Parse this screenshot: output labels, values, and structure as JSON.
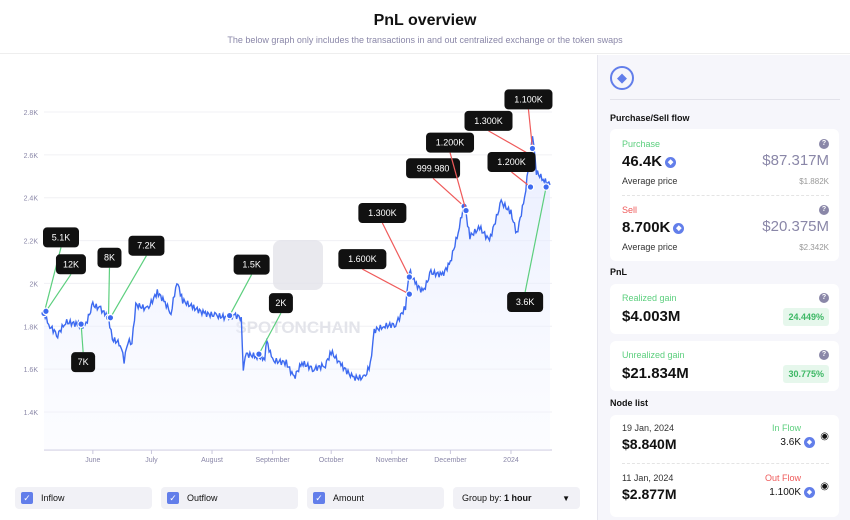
{
  "header": {
    "title": "PnL overview",
    "subtitle": "The below graph only includes the transactions in and out centralized exchange or the token swaps"
  },
  "colors": {
    "line": "#3d6af0",
    "inflow": "#5ccf7e",
    "outflow": "#ef5a5a",
    "accent": "#627eea"
  },
  "watermark": "SPOTONCHAIN",
  "chart_data": {
    "type": "line",
    "yticks": [
      "1.4K",
      "1.6K",
      "1.8K",
      "2K",
      "2.2K",
      "2.4K",
      "2.6K",
      "2.8K"
    ],
    "ylim": [
      1400,
      2800
    ],
    "xticks": [
      {
        "label": "June",
        "date": "2023-06-01"
      },
      {
        "label": "July",
        "date": "2023-07-01"
      },
      {
        "label": "August",
        "date": "2023-08-01"
      },
      {
        "label": "September",
        "date": "2023-09-01"
      },
      {
        "label": "October",
        "date": "2023-10-01"
      },
      {
        "label": "November",
        "date": "2023-11-01"
      },
      {
        "label": "December",
        "date": "2023-12-01"
      },
      {
        "label": "2024",
        "date": "2024-01-01"
      }
    ],
    "xlim": [
      "2023-05-07",
      "2024-01-22"
    ],
    "series": [
      [
        "2023-05-07",
        1860
      ],
      [
        "2023-05-10",
        1800
      ],
      [
        "2023-05-14",
        1760
      ],
      [
        "2023-05-18",
        1820
      ],
      [
        "2023-05-24",
        1810
      ],
      [
        "2023-05-28",
        1800
      ],
      [
        "2023-06-01",
        1900
      ],
      [
        "2023-06-05",
        1880
      ],
      [
        "2023-06-09",
        1840
      ],
      [
        "2023-06-11",
        1740
      ],
      [
        "2023-06-15",
        1720
      ],
      [
        "2023-06-17",
        1640
      ],
      [
        "2023-06-19",
        1730
      ],
      [
        "2023-06-21",
        1720
      ],
      [
        "2023-06-23",
        1900
      ],
      [
        "2023-06-29",
        1880
      ],
      [
        "2023-07-04",
        1960
      ],
      [
        "2023-07-08",
        1910
      ],
      [
        "2023-07-11",
        1860
      ],
      [
        "2023-07-14",
        2010
      ],
      [
        "2023-07-17",
        1920
      ],
      [
        "2023-07-22",
        1890
      ],
      [
        "2023-07-28",
        1860
      ],
      [
        "2023-08-03",
        1850
      ],
      [
        "2023-08-09",
        1840
      ],
      [
        "2023-08-13",
        1850
      ],
      [
        "2023-08-16",
        1840
      ],
      [
        "2023-08-17",
        1600
      ],
      [
        "2023-08-18",
        1670
      ],
      [
        "2023-08-24",
        1660
      ],
      [
        "2023-08-28",
        1650
      ],
      [
        "2023-08-29",
        1730
      ],
      [
        "2023-09-01",
        1640
      ],
      [
        "2023-09-08",
        1630
      ],
      [
        "2023-09-12",
        1560
      ],
      [
        "2023-09-16",
        1630
      ],
      [
        "2023-09-22",
        1600
      ],
      [
        "2023-09-28",
        1620
      ],
      [
        "2023-10-01",
        1680
      ],
      [
        "2023-10-06",
        1620
      ],
      [
        "2023-10-12",
        1560
      ],
      [
        "2023-10-18",
        1560
      ],
      [
        "2023-10-21",
        1620
      ],
      [
        "2023-10-23",
        1780
      ],
      [
        "2023-10-28",
        1800
      ],
      [
        "2023-11-03",
        1810
      ],
      [
        "2023-11-08",
        1890
      ],
      [
        "2023-11-10",
        2060
      ],
      [
        "2023-11-13",
        2000
      ],
      [
        "2023-11-17",
        1960
      ],
      [
        "2023-11-21",
        2050
      ],
      [
        "2023-11-27",
        2040
      ],
      [
        "2023-12-01",
        2100
      ],
      [
        "2023-12-05",
        2240
      ],
      [
        "2023-12-08",
        2370
      ],
      [
        "2023-12-11",
        2220
      ],
      [
        "2023-12-16",
        2260
      ],
      [
        "2023-12-21",
        2200
      ],
      [
        "2023-12-27",
        2380
      ],
      [
        "2024-01-01",
        2330
      ],
      [
        "2024-01-04",
        2230
      ],
      [
        "2024-01-08",
        2400
      ],
      [
        "2024-01-11",
        2620
      ],
      [
        "2024-01-12",
        2700
      ],
      [
        "2024-01-14",
        2520
      ],
      [
        "2024-01-18",
        2480
      ],
      [
        "2024-01-21",
        2460
      ]
    ],
    "annotations": [
      {
        "amount": "5.1K",
        "flow": "in",
        "date": "2023-05-07",
        "price": 1860
      },
      {
        "amount": "12K",
        "flow": "in",
        "date": "2023-05-08",
        "price": 1870
      },
      {
        "amount": "7K",
        "flow": "in",
        "date": "2023-05-26",
        "price": 1810
      },
      {
        "amount": "8K",
        "flow": "in",
        "date": "2023-06-09",
        "price": 1840
      },
      {
        "amount": "7.2K",
        "flow": "in",
        "date": "2023-06-10",
        "price": 1840
      },
      {
        "amount": "1.5K",
        "flow": "in",
        "date": "2023-08-10",
        "price": 1850
      },
      {
        "amount": "2K",
        "flow": "in",
        "date": "2023-08-25",
        "price": 1670
      },
      {
        "amount": "1.300K",
        "flow": "out",
        "date": "2023-11-10",
        "price": 2030
      },
      {
        "amount": "1.600K",
        "flow": "out",
        "date": "2023-11-10",
        "price": 1950
      },
      {
        "amount": "999.980",
        "flow": "out",
        "date": "2023-12-08",
        "price": 2360
      },
      {
        "amount": "1.200K",
        "flow": "out",
        "date": "2023-12-09",
        "price": 2340
      },
      {
        "amount": "1.300K",
        "flow": "out",
        "date": "2024-01-11",
        "price": 2600
      },
      {
        "amount": "1.100K",
        "flow": "out",
        "date": "2024-01-12",
        "price": 2630
      },
      {
        "amount": "1.200K",
        "flow": "out",
        "date": "2024-01-11",
        "price": 2450
      },
      {
        "amount": "3.6K",
        "flow": "in",
        "date": "2024-01-19",
        "price": 2450
      }
    ]
  },
  "controls": {
    "inflow": "Inflow",
    "outflow": "Outflow",
    "amount": "Amount",
    "group_prefix": "Group by:",
    "group_value": "1 hour"
  },
  "side": {
    "flow_title": "Purchase/Sell flow",
    "purchase": {
      "label": "Purchase",
      "amount": "46.4K",
      "usd": "$87.317M",
      "avg_label": "Average price",
      "avg": "$1.882K"
    },
    "sell": {
      "label": "Sell",
      "amount": "8.700K",
      "usd": "$20.375M",
      "avg_label": "Average price",
      "avg": "$2.342K"
    },
    "pnl_title": "PnL",
    "realized": {
      "label": "Realized gain",
      "value": "$4.003M",
      "pct": "24.449%"
    },
    "unrealized": {
      "label": "Unrealized gain",
      "value": "$21.834M",
      "pct": "30.775%"
    },
    "node_title": "Node list",
    "nodes": [
      {
        "date": "19 Jan, 2024",
        "usd": "$8.840M",
        "flow": "In Flow",
        "amount": "3.6K"
      },
      {
        "date": "11 Jan, 2024",
        "usd": "$2.877M",
        "flow": "Out Flow",
        "amount": "1.100K"
      }
    ]
  }
}
